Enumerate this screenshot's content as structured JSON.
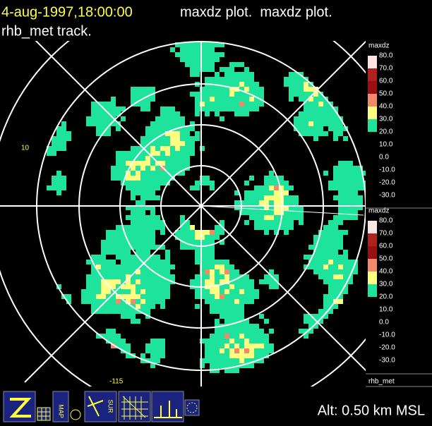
{
  "header": {
    "timestamp": "4-aug-1997,18:00:00",
    "plot_title": "maxdz plot.  maxdz plot.",
    "track": "rhb_met track."
  },
  "axis_labels": {
    "left": "10",
    "bottom": "-115"
  },
  "legends": [
    {
      "title": "maxdz",
      "labels": [
        "80.0",
        "70.0",
        "60.0",
        "50.0",
        "40.0",
        "30.0",
        "20.0",
        "10.0",
        "0.0",
        "-10.0",
        "-20.0",
        "-30.0"
      ],
      "colors": [
        "#ffe4e4",
        "#b0201c",
        "#9a1010",
        "#f08a6a",
        "#ffff80",
        "#1ee39c"
      ]
    },
    {
      "title": "maxdz",
      "labels": [
        "80.0",
        "70.0",
        "60.0",
        "50.0",
        "40.0",
        "30.0",
        "20.0",
        "10.0",
        "0.0",
        "-10.0",
        "-20.0",
        "-30.0"
      ],
      "colors": [
        "#ffe4e4",
        "#b0201c",
        "#9a1010",
        "#f08a6a",
        "#ffff80",
        "#1ee39c"
      ]
    }
  ],
  "platform": "rhb_met",
  "toolbar": {
    "map": "MAP",
    "sur": "SUR"
  },
  "altitude": "Alt: 0.50 km MSL"
}
